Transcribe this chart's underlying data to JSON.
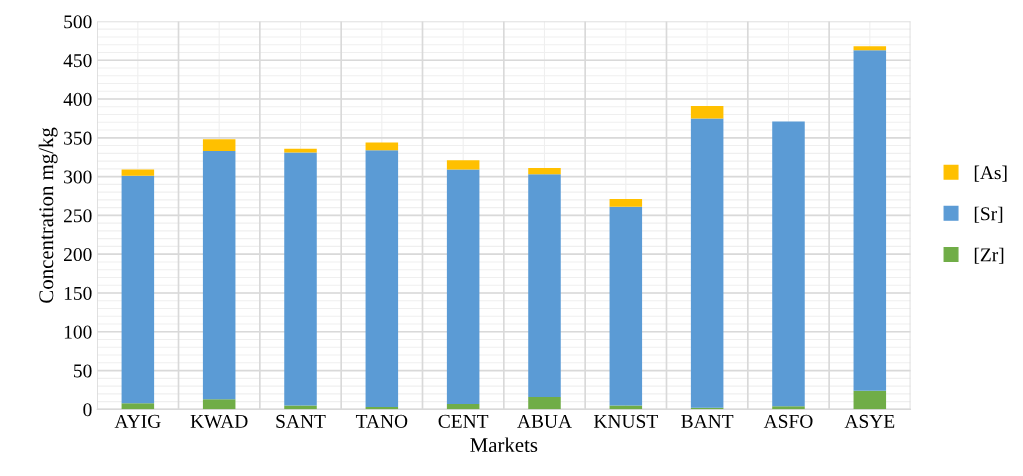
{
  "chart_data": {
    "type": "bar",
    "stacked": true,
    "xlabel": "Markets",
    "ylabel": "Concentration mg/kg",
    "categories": [
      "AYIG",
      "KWAD",
      "SANT",
      "TANO",
      "CENT",
      "ABUA",
      "KNUST",
      "BANT",
      "ASFO",
      "ASYE"
    ],
    "series": [
      {
        "name": "[Zr]",
        "color": "#70ad47",
        "values": [
          8,
          13,
          5,
          3,
          7,
          16,
          5,
          2,
          4,
          24
        ]
      },
      {
        "name": "[Sr]",
        "color": "#5b9bd5",
        "values": [
          293,
          320,
          326,
          331,
          302,
          287,
          256,
          373,
          367,
          439
        ]
      },
      {
        "name": "[As]",
        "color": "#ffc000",
        "values": [
          8,
          15,
          5,
          10,
          12,
          8,
          10,
          16,
          0,
          5
        ]
      }
    ],
    "ylim": [
      0,
      500
    ],
    "yticks": [
      0,
      50,
      100,
      150,
      200,
      250,
      300,
      350,
      400,
      450,
      500
    ],
    "grid": true,
    "legend": "right"
  }
}
